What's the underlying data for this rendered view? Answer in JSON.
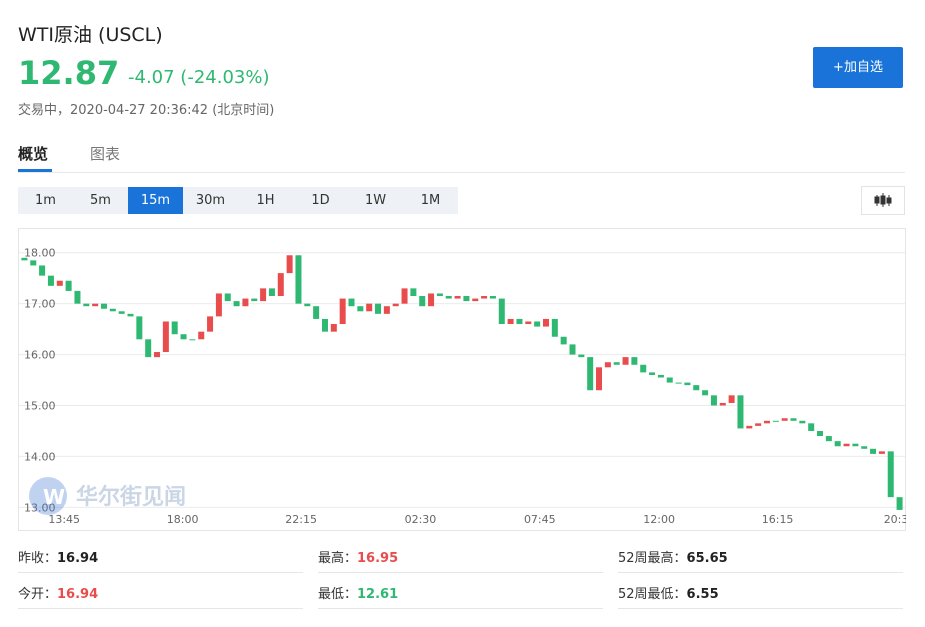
{
  "header": {
    "title": "WTI原油 (USCL)",
    "price": "12.87",
    "change": "-4.07 (-24.03%)",
    "status": "交易中，2020-04-27 20:36:42 (北京时间)",
    "button": "+加自选"
  },
  "tabs": [
    "概览",
    "图表"
  ],
  "intervals": [
    "1m",
    "5m",
    "15m",
    "30m",
    "1H",
    "1D",
    "1W",
    "1M"
  ],
  "active_interval": 2,
  "chart": {
    "type": "candlestick",
    "up_color": "#e84c4c",
    "down_color": "#2eb872",
    "grid": true,
    "ylim": [
      12.85,
      18.25
    ],
    "yticks": [
      {
        "value": 13,
        "label": "13.00"
      },
      {
        "value": 14,
        "label": "14.00"
      },
      {
        "value": 15,
        "label": "15.00"
      },
      {
        "value": 16,
        "label": "16.00"
      },
      {
        "value": 17,
        "label": "17.00"
      },
      {
        "value": 18,
        "label": "18.00"
      }
    ],
    "xlim": [
      0,
      100
    ],
    "xticks": [
      {
        "value": 5,
        "label": "13:45"
      },
      {
        "value": 18.4,
        "label": "18:00"
      },
      {
        "value": 31.8,
        "label": "22:15"
      },
      {
        "value": 45.3,
        "label": "02:30"
      },
      {
        "value": 58.8,
        "label": "07:45"
      },
      {
        "value": 72.3,
        "label": "12:00"
      },
      {
        "value": 85.7,
        "label": "16:15"
      },
      {
        "value": 99.1,
        "label": "20:3"
      }
    ],
    "open": [
      17.9,
      17.85,
      17.75,
      17.55,
      17.35,
      17.45,
      17.25,
      17.0,
      16.95,
      17.0,
      16.9,
      16.85,
      16.8,
      16.75,
      16.3,
      15.95,
      16.05,
      16.65,
      16.4,
      16.3,
      16.3,
      16.45,
      16.75,
      17.2,
      17.05,
      16.95,
      17.1,
      17.05,
      17.3,
      17.15,
      17.6,
      17.95,
      17.0,
      16.95,
      16.7,
      16.45,
      16.6,
      17.1,
      16.95,
      16.85,
      17.0,
      16.8,
      16.95,
      17.0,
      17.3,
      17.15,
      16.95,
      17.2,
      17.15,
      17.1,
      17.15,
      17.05,
      17.1,
      17.15,
      17.1,
      16.6,
      16.7,
      16.6,
      16.65,
      16.55,
      16.7,
      16.35,
      16.2,
      16.0,
      15.95,
      15.3,
      15.75,
      15.85,
      15.8,
      15.95,
      15.8,
      15.65,
      15.6,
      15.55,
      15.45,
      15.45,
      15.4,
      15.3,
      15.2,
      15.0,
      15.05,
      15.2,
      14.55,
      14.6,
      14.65,
      14.7,
      14.7,
      14.75,
      14.7,
      14.65,
      14.5,
      14.4,
      14.3,
      14.2,
      14.25,
      14.2,
      14.15,
      14.05,
      14.1,
      13.2
    ],
    "close": [
      17.85,
      17.75,
      17.55,
      17.35,
      17.45,
      17.25,
      17.0,
      16.95,
      17.0,
      16.9,
      16.85,
      16.8,
      16.75,
      16.3,
      15.95,
      16.05,
      16.65,
      16.4,
      16.3,
      16.3,
      16.45,
      16.75,
      17.2,
      17.05,
      16.95,
      17.1,
      17.05,
      17.3,
      17.15,
      17.6,
      17.95,
      17.0,
      16.95,
      16.7,
      16.45,
      16.6,
      17.1,
      16.95,
      16.85,
      17.0,
      16.8,
      16.95,
      17.0,
      17.3,
      17.15,
      16.95,
      17.2,
      17.15,
      17.1,
      17.15,
      17.05,
      17.1,
      17.15,
      17.1,
      16.6,
      16.7,
      16.6,
      16.65,
      16.55,
      16.7,
      16.35,
      16.2,
      16.0,
      15.95,
      15.3,
      15.75,
      15.85,
      15.8,
      15.95,
      15.8,
      15.65,
      15.6,
      15.55,
      15.45,
      15.45,
      15.4,
      15.3,
      15.2,
      15.0,
      15.05,
      15.2,
      14.55,
      14.6,
      14.65,
      14.7,
      14.7,
      14.75,
      14.7,
      14.65,
      14.5,
      14.4,
      14.3,
      14.2,
      14.25,
      14.2,
      14.15,
      14.05,
      14.1,
      13.2,
      12.95
    ],
    "watermark": "华尔街见闻"
  },
  "stats": [
    [
      {
        "label": "昨收：",
        "value": "16.94",
        "color": "#222"
      },
      {
        "label": "最高：",
        "value": "16.95",
        "color": "#e84c4c"
      },
      {
        "label": "52周最高：",
        "value": "65.65",
        "color": "#222"
      }
    ],
    [
      {
        "label": "今开：",
        "value": "16.94",
        "color": "#e84c4c"
      },
      {
        "label": "最低：",
        "value": "12.61",
        "color": "#2eb872"
      },
      {
        "label": "52周最低：",
        "value": "6.55",
        "color": "#222"
      }
    ]
  ]
}
